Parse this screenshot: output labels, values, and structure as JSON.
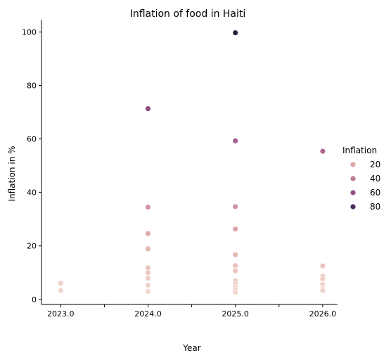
{
  "chart_data": {
    "type": "scatter",
    "title": "Inflation of food in Haiti",
    "xlabel": "Year",
    "ylabel": "Inflation in %",
    "xlim": [
      2022.78,
      2026.17
    ],
    "ylim": [
      -1.9,
      104.6
    ],
    "x_ticks": [
      2023.0,
      2023.5,
      2024.0,
      2024.5,
      2025.0,
      2025.5,
      2026.0
    ],
    "x_tick_labels": [
      "2023.0",
      "",
      "2024.0",
      "",
      "2025.0",
      "",
      "2026.0"
    ],
    "y_ticks": [
      0,
      20,
      40,
      60,
      80,
      100
    ],
    "y_tick_labels": [
      "0",
      "20",
      "40",
      "60",
      "80",
      "100"
    ],
    "grid": false,
    "legend": {
      "title": "Inflation",
      "placement": "right",
      "entries": [
        {
          "label": "20",
          "value": 20,
          "color": "#d9a6a4"
        },
        {
          "label": "40",
          "value": 40,
          "color": "#c07a93"
        },
        {
          "label": "60",
          "value": 60,
          "color": "#8e5089"
        },
        {
          "label": "80",
          "value": 80,
          "color": "#4d2c5e"
        }
      ]
    },
    "color_scale": {
      "domain": [
        2.5,
        100
      ],
      "stops": [
        "#f2d6cf",
        "#e3b0ad",
        "#c8849a",
        "#a25b8e",
        "#73417c",
        "#2d1e3e"
      ]
    },
    "points": [
      {
        "x": 2023.0,
        "y": 6.0
      },
      {
        "x": 2023.0,
        "y": 3.3
      },
      {
        "x": 2024.0,
        "y": 71.3
      },
      {
        "x": 2024.0,
        "y": 34.5
      },
      {
        "x": 2024.0,
        "y": 24.6
      },
      {
        "x": 2024.0,
        "y": 18.9
      },
      {
        "x": 2024.0,
        "y": 11.8
      },
      {
        "x": 2024.0,
        "y": 10.0
      },
      {
        "x": 2024.0,
        "y": 7.9
      },
      {
        "x": 2024.0,
        "y": 5.3
      },
      {
        "x": 2024.0,
        "y": 3.0
      },
      {
        "x": 2025.0,
        "y": 99.7
      },
      {
        "x": 2025.0,
        "y": 59.3
      },
      {
        "x": 2025.0,
        "y": 34.7
      },
      {
        "x": 2025.0,
        "y": 26.3
      },
      {
        "x": 2025.0,
        "y": 16.7
      },
      {
        "x": 2025.0,
        "y": 12.6
      },
      {
        "x": 2025.0,
        "y": 10.7
      },
      {
        "x": 2025.0,
        "y": 7.0
      },
      {
        "x": 2025.0,
        "y": 5.8
      },
      {
        "x": 2025.0,
        "y": 4.6
      },
      {
        "x": 2025.0,
        "y": 3.6
      },
      {
        "x": 2025.0,
        "y": 2.7
      },
      {
        "x": 2026.0,
        "y": 55.4
      },
      {
        "x": 2026.0,
        "y": 12.5
      },
      {
        "x": 2026.0,
        "y": 8.7
      },
      {
        "x": 2026.0,
        "y": 7.7
      },
      {
        "x": 2026.0,
        "y": 5.6
      },
      {
        "x": 2026.0,
        "y": 4.0
      },
      {
        "x": 2026.0,
        "y": 3.3
      }
    ]
  }
}
